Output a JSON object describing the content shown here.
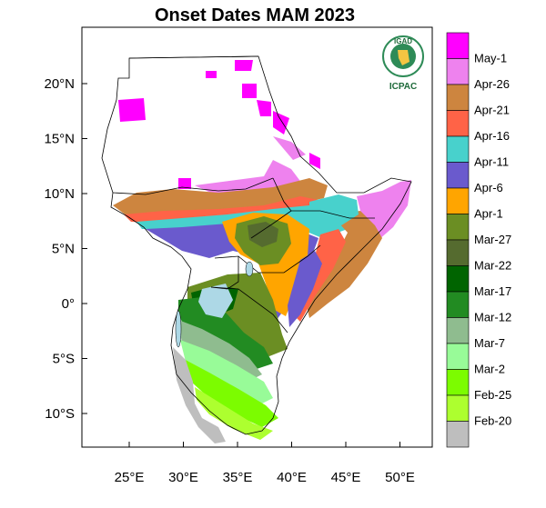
{
  "title": "Onset Dates  MAM 2023",
  "logo": {
    "top_text": "IGAD",
    "bottom_text": "ICPAC"
  },
  "axes": {
    "lat_ticks": [
      "20°N",
      "15°N",
      "10°N",
      "5°N",
      "0°",
      "5°S",
      "10°S"
    ],
    "lon_ticks": [
      "25°E",
      "30°E",
      "35°E",
      "40°E",
      "45°E",
      "50°E"
    ]
  },
  "legend": [
    {
      "label": "May-1",
      "color": "#ff00ff"
    },
    {
      "label": "Apr-26",
      "color": "#ee82ee"
    },
    {
      "label": "Apr-21",
      "color": "#cd853f"
    },
    {
      "label": "Apr-16",
      "color": "#ff6347"
    },
    {
      "label": "Apr-11",
      "color": "#48d1cc"
    },
    {
      "label": "Apr-6",
      "color": "#6a5acd"
    },
    {
      "label": "Apr-1",
      "color": "#ffa500"
    },
    {
      "label": "Mar-27",
      "color": "#6b8e23"
    },
    {
      "label": "Mar-22",
      "color": "#556b2f"
    },
    {
      "label": "Mar-17",
      "color": "#006400"
    },
    {
      "label": "Mar-12",
      "color": "#228b22"
    },
    {
      "label": "Mar-7",
      "color": "#8fbc8f"
    },
    {
      "label": "Mar-2",
      "color": "#98fb98"
    },
    {
      "label": "Feb-25",
      "color": "#7cfc00"
    },
    {
      "label": "Feb-20",
      "color": "#adff2f"
    },
    {
      "label": "",
      "color": "#bebebe"
    }
  ],
  "regions": [
    {
      "name": "north-sudan-may",
      "color": "#ff00ff"
    },
    {
      "name": "sudan-apr26",
      "color": "#ee82ee"
    },
    {
      "name": "sahel-band-apr21",
      "color": "#cd853f"
    },
    {
      "name": "sahel-band-apr16",
      "color": "#ff6347"
    },
    {
      "name": "sahel-band-apr11",
      "color": "#48d1cc"
    },
    {
      "name": "south-sudan-apr6",
      "color": "#6a5acd"
    },
    {
      "name": "central-apr1",
      "color": "#ffa500"
    },
    {
      "name": "ethiopia-highland-mar27",
      "color": "#6b8e23"
    },
    {
      "name": "ethiopia-core-mar22",
      "color": "#556b2f"
    },
    {
      "name": "horn-apr26",
      "color": "#ee82ee"
    },
    {
      "name": "somalia-apr21",
      "color": "#cd853f"
    },
    {
      "name": "kenya-coast-apr16",
      "color": "#ff6347"
    },
    {
      "name": "somalia-interior-apr11",
      "color": "#48d1cc"
    },
    {
      "name": "kenya-apr6",
      "color": "#6a5acd"
    },
    {
      "name": "tanzania-mar27",
      "color": "#6b8e23"
    },
    {
      "name": "tanzania-mar17",
      "color": "#006400"
    },
    {
      "name": "tanzania-mar12",
      "color": "#228b22"
    },
    {
      "name": "tanzania-mar7",
      "color": "#8fbc8f"
    },
    {
      "name": "tanzania-mar2",
      "color": "#98fb98"
    },
    {
      "name": "tanzania-feb25",
      "color": "#7cfc00"
    },
    {
      "name": "tanzania-feb20",
      "color": "#adff2f"
    },
    {
      "name": "lake-victoria",
      "color": "#add8e6"
    },
    {
      "name": "southwest-no-onset",
      "color": "#bebebe"
    }
  ]
}
